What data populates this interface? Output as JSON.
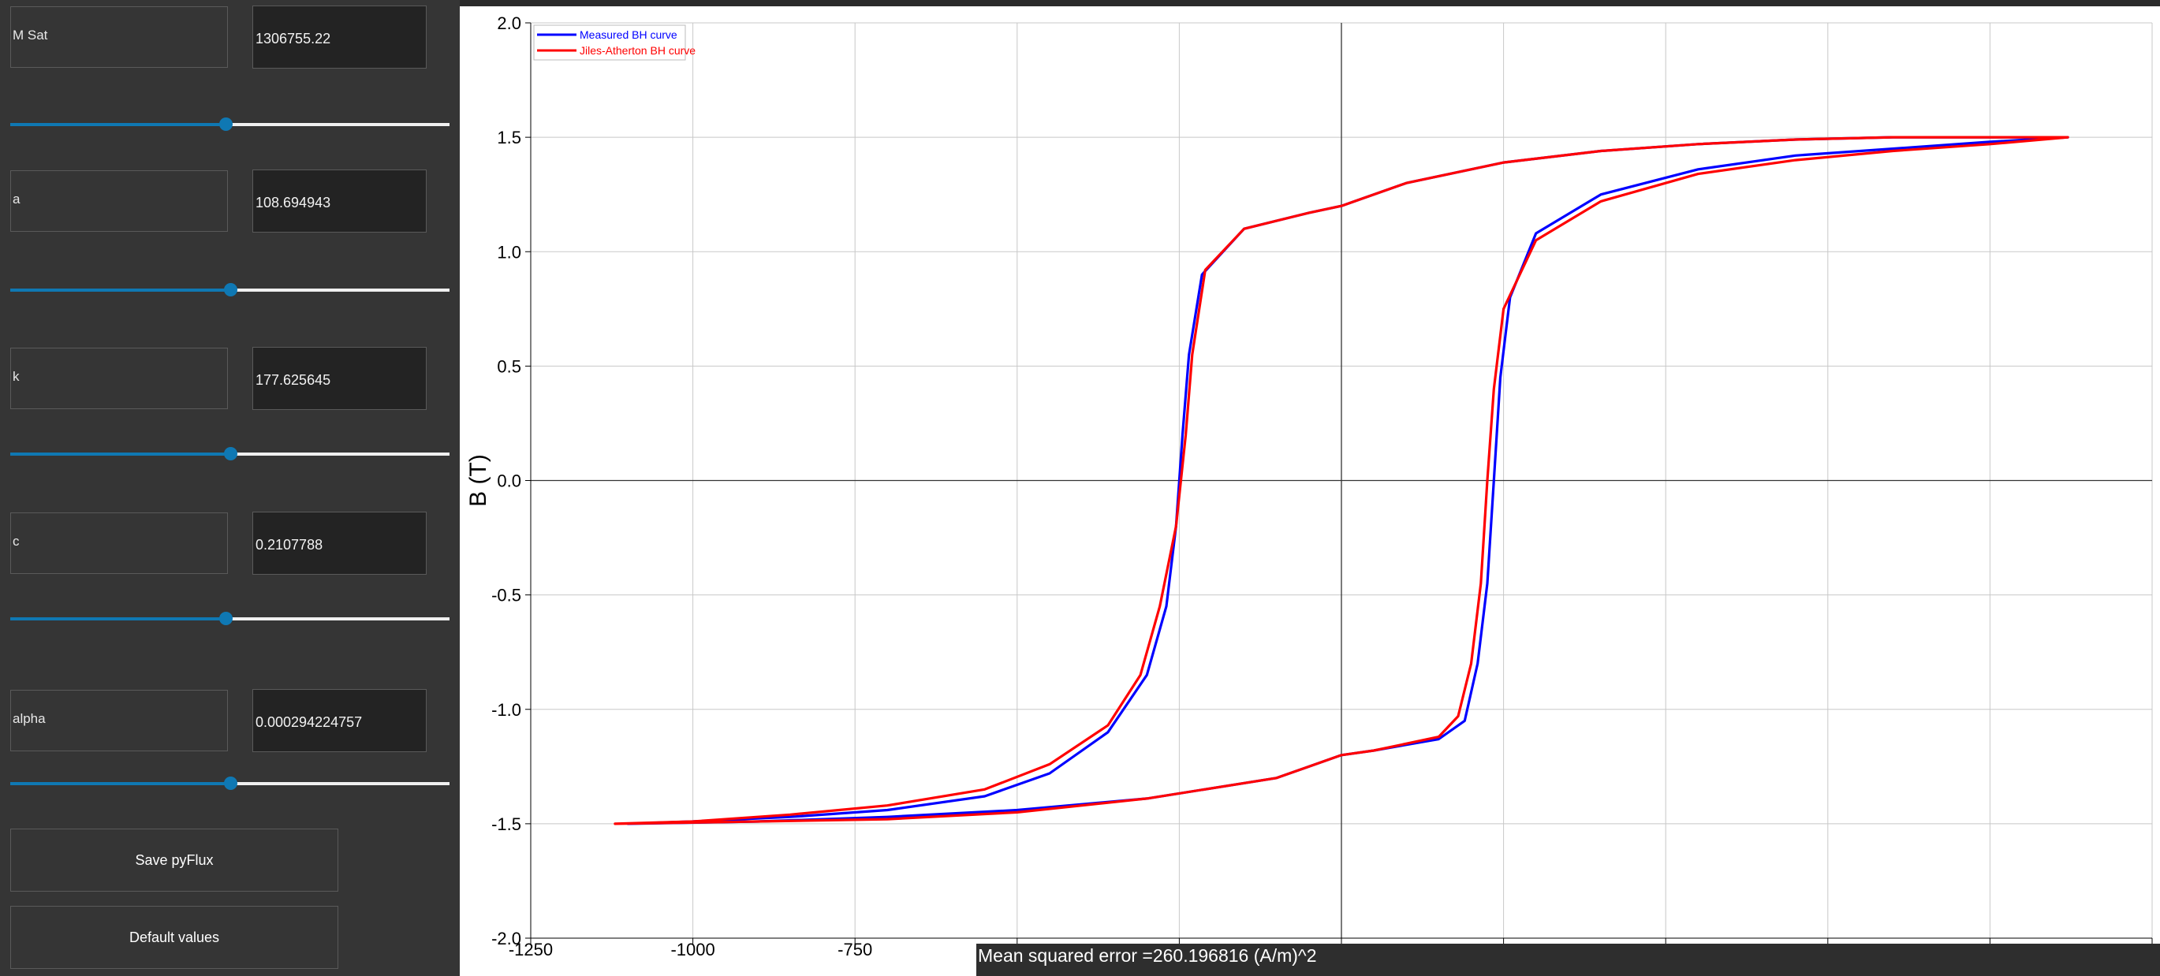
{
  "params": [
    {
      "key": "msat",
      "label": "M Sat",
      "value": "1306755.22",
      "slider": 0.49
    },
    {
      "key": "a",
      "label": "a",
      "value": "108.694943",
      "slider": 0.5
    },
    {
      "key": "k",
      "label": "k",
      "value": "177.625645",
      "slider": 0.5
    },
    {
      "key": "c",
      "label": "c",
      "value": "0.2107788",
      "slider": 0.49
    },
    {
      "key": "alpha",
      "label": "alpha",
      "value": "0.000294224757",
      "slider": 0.5
    }
  ],
  "buttons": {
    "save": "Save pyFlux",
    "defaults": "Default values"
  },
  "status": {
    "mse": "Mean squared error =260.196816 (A/m)^2"
  },
  "colors": {
    "measured": "#0000ff",
    "model": "#ff0000",
    "slider_accent": "#0f78b3"
  },
  "chart_data": {
    "type": "line",
    "title": "",
    "xlabel": "",
    "ylabel": "B (T)",
    "xlim": [
      -1250,
      1250
    ],
    "ylim": [
      -2.0,
      2.0
    ],
    "x_ticks": [
      -1250,
      -1000,
      -750
    ],
    "x_tick_labels": [
      "-1250",
      "-1000",
      "-750"
    ],
    "y_ticks": [
      2.0,
      1.5,
      1.0,
      0.5,
      0.0,
      -0.5,
      -1.0,
      -1.5,
      -2.0
    ],
    "y_tick_labels": [
      "2.0",
      "1.5",
      "1.0",
      "0.5",
      "0.0",
      "-0.5",
      "-1.0",
      "-1.5",
      "-2.0"
    ],
    "grid": true,
    "legend_position": "top-left",
    "series": [
      {
        "name": "Measured BH curve",
        "color": "#0000ff",
        "x": [
          -1100,
          -1000,
          -850,
          -700,
          -550,
          -450,
          -360,
          -300,
          -270,
          -255,
          -245,
          -235,
          -215,
          -150,
          -50,
          0,
          100,
          250,
          400,
          550,
          700,
          850,
          1000,
          1100,
          1120,
          1000,
          850,
          700,
          550,
          400,
          300,
          260,
          245,
          235,
          225,
          210,
          190,
          150,
          50,
          0,
          -100,
          -300,
          -500,
          -700,
          -900,
          -1100
        ],
        "y": [
          -1.5,
          -1.49,
          -1.47,
          -1.44,
          -1.38,
          -1.28,
          -1.1,
          -0.85,
          -0.55,
          -0.2,
          0.2,
          0.55,
          0.9,
          1.1,
          1.17,
          1.2,
          1.3,
          1.39,
          1.44,
          1.47,
          1.49,
          1.5,
          1.5,
          1.5,
          1.5,
          1.48,
          1.45,
          1.42,
          1.36,
          1.25,
          1.08,
          0.8,
          0.45,
          0.0,
          -0.45,
          -0.8,
          -1.05,
          -1.13,
          -1.18,
          -1.2,
          -1.3,
          -1.39,
          -1.44,
          -1.47,
          -1.49,
          -1.5
        ]
      },
      {
        "name": "Jiles-Atherton BH curve",
        "color": "#ff0000",
        "x": [
          -1120,
          -1000,
          -850,
          -700,
          -550,
          -450,
          -360,
          -310,
          -280,
          -255,
          -240,
          -230,
          -210,
          -150,
          -50,
          0,
          100,
          250,
          400,
          550,
          700,
          850,
          1000,
          1120,
          1000,
          850,
          700,
          550,
          400,
          300,
          250,
          235,
          225,
          215,
          200,
          180,
          150,
          50,
          0,
          -100,
          -300,
          -500,
          -700,
          -900,
          -1120
        ],
        "y": [
          -1.5,
          -1.49,
          -1.46,
          -1.42,
          -1.35,
          -1.24,
          -1.07,
          -0.85,
          -0.55,
          -0.2,
          0.2,
          0.55,
          0.92,
          1.1,
          1.17,
          1.2,
          1.3,
          1.39,
          1.44,
          1.47,
          1.49,
          1.5,
          1.5,
          1.5,
          1.47,
          1.44,
          1.4,
          1.34,
          1.22,
          1.05,
          0.75,
          0.4,
          0.0,
          -0.45,
          -0.8,
          -1.03,
          -1.12,
          -1.18,
          -1.2,
          -1.3,
          -1.39,
          -1.45,
          -1.48,
          -1.49,
          -1.5
        ]
      }
    ]
  }
}
